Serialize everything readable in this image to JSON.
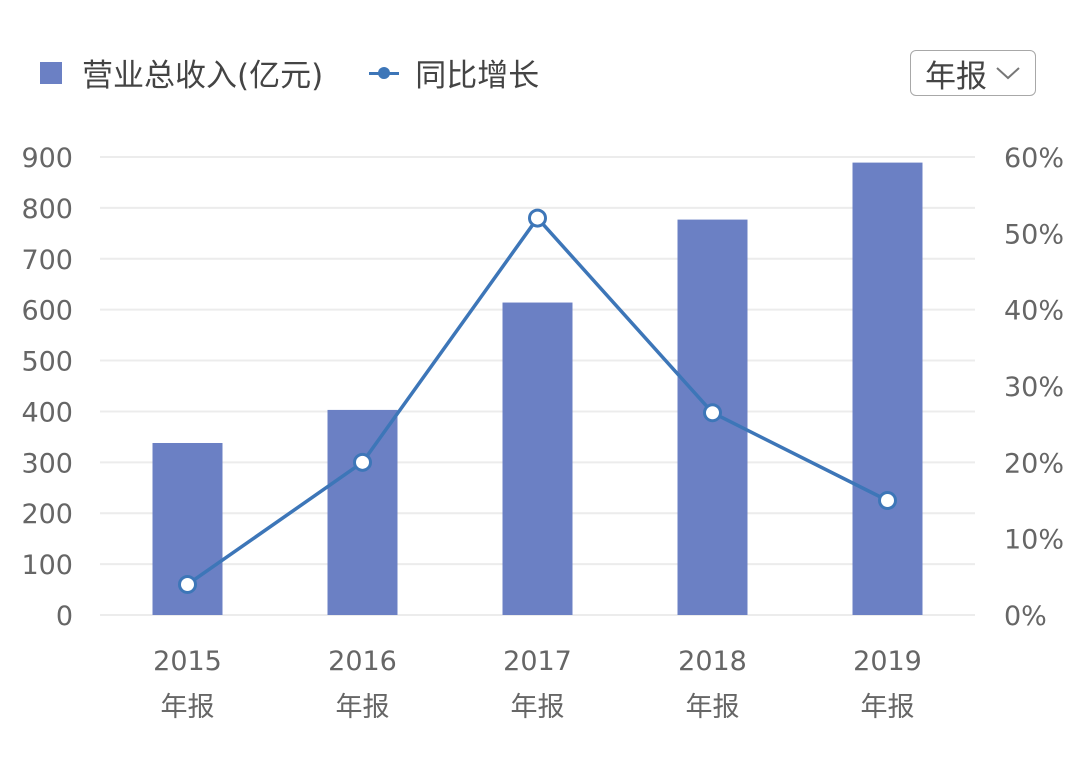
{
  "legend": {
    "bar_label": "营业总收入(亿元)",
    "line_label": "同比增长"
  },
  "period_select": {
    "value": "年报",
    "icon": "chevron-down-icon"
  },
  "colors": {
    "bar": "#6b80c4",
    "line": "#3d76b8",
    "grid": "#ececec",
    "axis_text": "#666666"
  },
  "chart_data": {
    "type": "bar",
    "categories": [
      "2015",
      "2016",
      "2017",
      "2018",
      "2019"
    ],
    "category_sublabel": "年报",
    "series": [
      {
        "name": "营业总收入(亿元)",
        "type": "bar",
        "axis": "left",
        "values": [
          338,
          403,
          614,
          777,
          889
        ]
      },
      {
        "name": "同比增长",
        "type": "line",
        "axis": "right",
        "values": [
          4,
          20,
          52,
          26.5,
          15
        ]
      }
    ],
    "left_axis": {
      "ticks": [
        "0",
        "100",
        "200",
        "300",
        "400",
        "500",
        "600",
        "700",
        "800",
        "900"
      ],
      "ylim": [
        0,
        900
      ]
    },
    "right_axis": {
      "ticks": [
        "0%",
        "10%",
        "20%",
        "30%",
        "40%",
        "50%",
        "60%"
      ],
      "ylim": [
        0,
        60
      ]
    },
    "grid": true,
    "legend_position": "top-left"
  }
}
